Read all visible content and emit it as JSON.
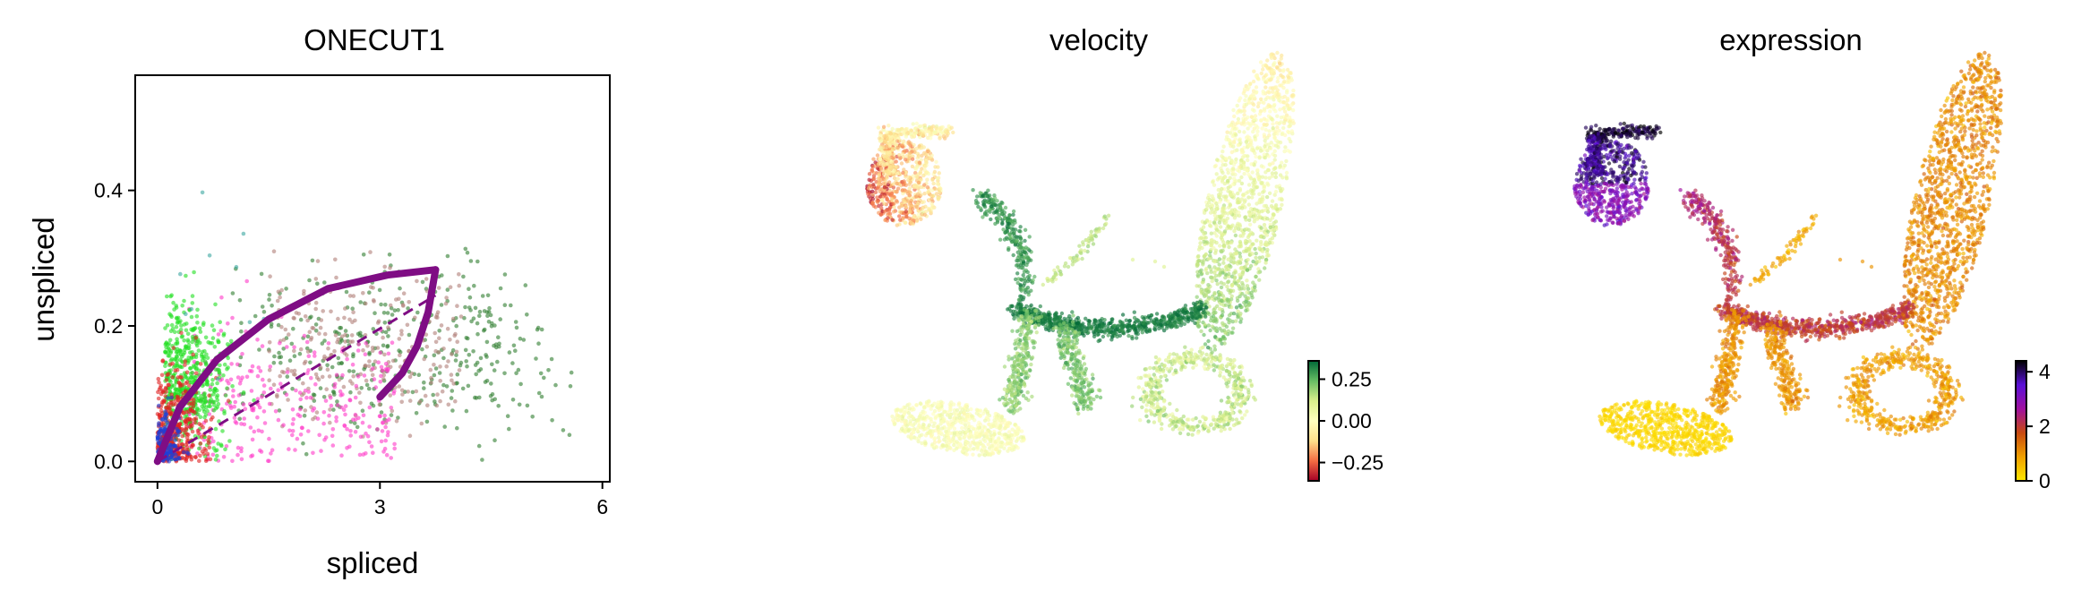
{
  "chart_data": [
    {
      "type": "scatter",
      "title": "ONECUT1",
      "xlabel": "spliced",
      "ylabel": "unspliced",
      "xlim": [
        -0.3,
        6.1
      ],
      "ylim": [
        -0.03,
        0.57
      ],
      "x_ticks": [
        "0",
        "3",
        "6"
      ],
      "y_ticks": [
        "0.0",
        "0.2",
        "0.4"
      ],
      "grid": false,
      "point_colors": [
        "#1f3fd6",
        "#e02020",
        "#22e022",
        "#ff39c8",
        "#b07f78",
        "#2e7d2e",
        "#3aa7a0"
      ],
      "fit_curve": {
        "color": "#7f0d84",
        "upper_arc": [
          [
            0,
            0
          ],
          [
            0.3,
            0.08
          ],
          [
            0.8,
            0.15
          ],
          [
            1.5,
            0.21
          ],
          [
            2.3,
            0.255
          ],
          [
            3.1,
            0.275
          ],
          [
            3.75,
            0.283
          ]
        ],
        "lower_arc": [
          [
            3.75,
            0.283
          ],
          [
            3.65,
            0.22
          ],
          [
            3.5,
            0.17
          ],
          [
            3.3,
            0.13
          ],
          [
            3.0,
            0.095
          ]
        ],
        "dashed_line": [
          [
            0,
            0
          ],
          [
            3.75,
            0.245
          ]
        ]
      }
    },
    {
      "type": "scatter",
      "title": "velocity",
      "colorbar": {
        "ticks": [
          "0.25",
          "0.00",
          "−0.25"
        ],
        "range": [
          -0.36,
          0.36
        ],
        "colors": [
          "#a50026",
          "#f46d43",
          "#fee08b",
          "#ffffbf",
          "#d9ef8b",
          "#66bd63",
          "#006837"
        ]
      }
    },
    {
      "type": "scatter",
      "title": "expression",
      "colorbar": {
        "ticks": [
          "4",
          "2",
          "0"
        ],
        "range": [
          0,
          4.4
        ],
        "colors": [
          "#ffe800",
          "#f0a000",
          "#c84a10",
          "#a010a0",
          "#5a10d8",
          "#000000"
        ]
      }
    }
  ]
}
